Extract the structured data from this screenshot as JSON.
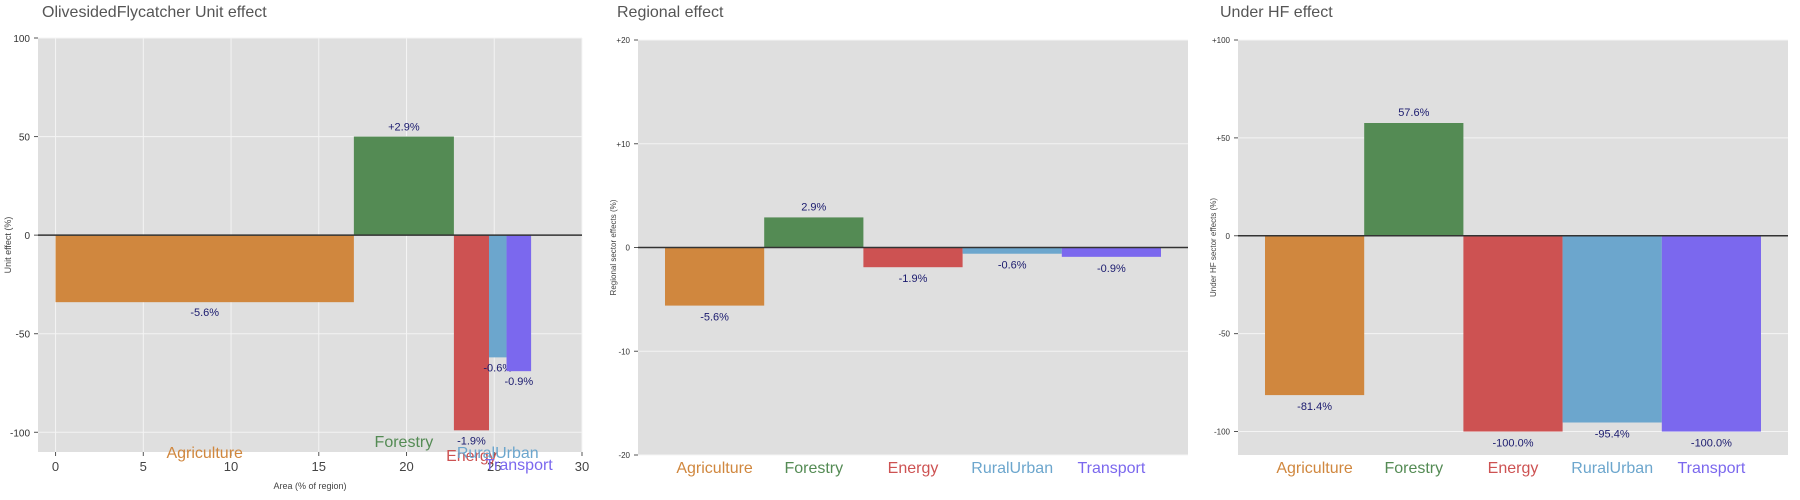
{
  "colors": {
    "Agriculture": "#D0873E",
    "Forestry": "#548B54",
    "Energy": "#CD5252",
    "RuralUrban": "#6CA6CD",
    "Transport": "#7B68EE",
    "panel_bg": "#DFDFDF",
    "grid": "#F4F4F4",
    "zero_line": "#333333",
    "label_text": "#1A1A6E"
  },
  "chart_data": [
    {
      "type": "bar",
      "title": "OlivesidedFlycatcher Unit effect",
      "xlabel": "Area (% of region)",
      "ylabel": "Unit effect (%)",
      "xlim": [
        -1,
        30
      ],
      "ylim": [
        -110,
        100
      ],
      "xticks": [
        "0",
        "5",
        "10",
        "15",
        "20",
        "25",
        "30"
      ],
      "yticks": [
        "100",
        "50",
        "0",
        "-50",
        "-100"
      ],
      "categories": [
        "Agriculture",
        "Forestry",
        "Energy",
        "RuralUrban",
        "Transport"
      ],
      "area": [
        17,
        5.7,
        2,
        1,
        1.4
      ],
      "values": [
        -34,
        50,
        -99,
        -62,
        -69
      ],
      "labels": [
        "-5.6%",
        "+2.9%",
        "-1.9%",
        "-0.6%",
        "-0.9%"
      ],
      "grid": true
    },
    {
      "type": "bar",
      "title": "Regional effect",
      "xlabel": "",
      "ylabel": "Regional sector effects (%)",
      "ylim": [
        -20,
        20
      ],
      "yticks": [
        "+20",
        "+10",
        "0",
        "-10",
        "-20"
      ],
      "categories": [
        "Agriculture",
        "Forestry",
        "Energy",
        "RuralUrban",
        "Transport"
      ],
      "values": [
        -5.6,
        2.9,
        -1.9,
        -0.6,
        -0.9
      ],
      "labels": [
        "-5.6%",
        "2.9%",
        "-1.9%",
        "-0.6%",
        "-0.9%"
      ],
      "grid": true
    },
    {
      "type": "bar",
      "title": "Under HF effect",
      "xlabel": "",
      "ylabel": "Under HF sector effects (%)",
      "ylim": [
        -112,
        100
      ],
      "yticks": [
        "+100",
        "+50",
        "0",
        "-50",
        "-100"
      ],
      "categories": [
        "Agriculture",
        "Forestry",
        "Energy",
        "RuralUrban",
        "Transport"
      ],
      "values": [
        -81.4,
        57.6,
        -100.0,
        -95.4,
        -100.0
      ],
      "labels": [
        "-81.4%",
        "57.6%",
        "-100.0%",
        "-95.4%",
        "-100.0%"
      ],
      "grid": true
    }
  ]
}
